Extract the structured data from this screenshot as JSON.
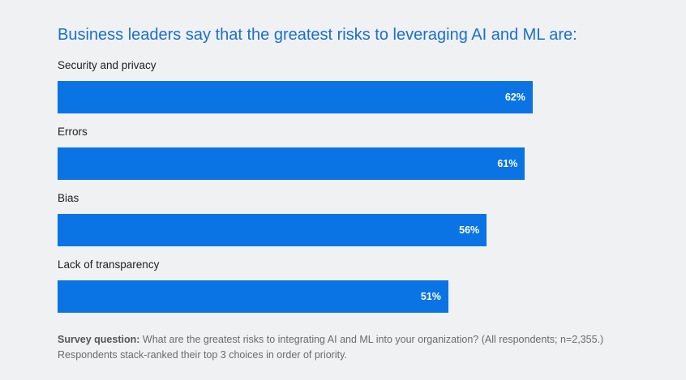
{
  "chart_data": {
    "type": "bar",
    "orientation": "horizontal",
    "title": "Business leaders say that the greatest risks to leveraging AI and ML are:",
    "categories": [
      "Security and privacy",
      "Errors",
      "Bias",
      "Lack of transparency"
    ],
    "values": [
      62,
      61,
      56,
      51
    ],
    "value_labels": [
      "62%",
      "61%",
      "56%",
      "51%"
    ],
    "bar_color": "#0a74e4",
    "grid": false,
    "xlim": [
      0,
      100
    ]
  },
  "footnote": {
    "label": "Survey question:",
    "text": " What are the greatest risks to integrating AI and ML into your organization? (All respondents; n=2,355.) Respondents stack-ranked their top 3 choices in order of priority."
  }
}
